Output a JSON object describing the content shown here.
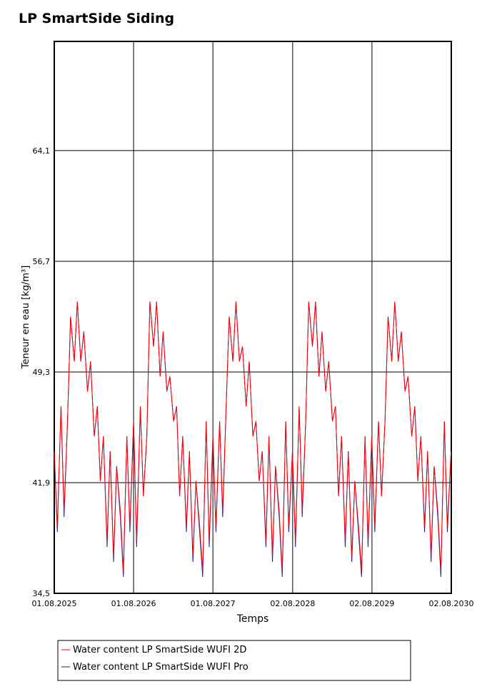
{
  "chart_data": {
    "type": "line",
    "title": "LP SmartSide Siding",
    "x_label": "Temps",
    "y_label": "Teneur en eau [kg/m³]",
    "x": [
      "01.08.2025",
      "15.08.2025",
      "01.09.2025",
      "15.09.2025",
      "01.10.2025",
      "15.10.2025",
      "01.11.2025",
      "15.11.2025",
      "01.12.2025",
      "15.12.2025",
      "01.01.2026",
      "15.01.2026",
      "01.02.2026",
      "15.02.2026",
      "01.03.2026",
      "15.03.2026",
      "01.04.2026",
      "15.04.2026",
      "01.05.2026",
      "15.05.2026",
      "01.06.2026",
      "15.06.2026",
      "01.07.2026",
      "15.07.2026",
      "01.08.2026",
      "15.08.2026",
      "01.09.2026",
      "15.09.2026",
      "01.10.2026",
      "15.10.2026",
      "01.11.2026",
      "15.11.2026",
      "01.12.2026",
      "15.12.2026",
      "01.01.2027",
      "15.01.2027",
      "01.02.2027",
      "15.02.2027",
      "01.03.2027",
      "15.03.2027",
      "01.04.2027",
      "15.04.2027",
      "01.05.2027",
      "15.05.2027",
      "01.06.2027",
      "15.06.2027",
      "01.07.2027",
      "15.07.2027",
      "01.08.2027",
      "15.08.2027",
      "01.09.2027",
      "15.09.2027",
      "01.10.2027",
      "15.10.2027",
      "01.11.2027",
      "15.11.2027",
      "01.12.2027",
      "15.12.2027",
      "01.01.2028",
      "15.01.2028",
      "01.02.2028",
      "15.02.2028",
      "01.03.2028",
      "15.03.2028",
      "01.04.2028",
      "15.04.2028",
      "01.05.2028",
      "15.05.2028",
      "01.06.2028",
      "15.06.2028",
      "01.07.2028",
      "15.07.2028",
      "01.08.2028",
      "15.08.2028",
      "01.09.2028",
      "15.09.2028",
      "01.10.2028",
      "15.10.2028",
      "01.11.2028",
      "15.11.2028",
      "01.12.2028",
      "15.12.2028",
      "01.01.2029",
      "15.01.2029",
      "01.02.2029",
      "15.02.2029",
      "01.03.2029",
      "15.03.2029",
      "01.04.2029",
      "15.04.2029",
      "01.05.2029",
      "15.05.2029",
      "01.06.2029",
      "15.06.2029",
      "01.07.2029",
      "15.07.2029",
      "01.08.2029",
      "15.08.2029",
      "01.09.2029",
      "15.09.2029",
      "01.10.2029",
      "15.10.2029",
      "01.11.2029",
      "15.11.2029",
      "01.12.2029",
      "15.12.2029",
      "01.01.2030",
      "15.01.2030",
      "01.02.2030",
      "15.02.2030",
      "01.03.2030",
      "15.03.2030",
      "01.04.2030",
      "15.04.2030",
      "01.05.2030",
      "15.05.2030",
      "01.06.2030",
      "15.06.2030",
      "01.07.2030",
      "15.07.2030",
      "01.08.2030"
    ],
    "series": [
      {
        "name": "Water content LP SmartSide WUFI Pro",
        "color": "#1a1aaa",
        "values": [
          44,
          38.6,
          47,
          39.6,
          46,
          53,
          50,
          54,
          50,
          52,
          48,
          50,
          45,
          47,
          42,
          45,
          37.6,
          44,
          36.6,
          43,
          39.6,
          35.6,
          45,
          38.6,
          46,
          37.6,
          47,
          41,
          45,
          54,
          51,
          54,
          49,
          52,
          48,
          49,
          46,
          47,
          41,
          45,
          38.6,
          44,
          36.6,
          42,
          38.6,
          35.6,
          46,
          37.6,
          45,
          38.6,
          46,
          39.6,
          47,
          53,
          50,
          54,
          50,
          51,
          47,
          50,
          45,
          46,
          42,
          44,
          37.6,
          45,
          36.6,
          43,
          39.6,
          35.6,
          46,
          38.6,
          44,
          37.6,
          47,
          39.6,
          46,
          54,
          51,
          54,
          49,
          52,
          48,
          50,
          46,
          47,
          41,
          45,
          37.6,
          44,
          36.6,
          42,
          38.6,
          35.6,
          45,
          37.6,
          45,
          38.6,
          46,
          41,
          46,
          53,
          50,
          54,
          50,
          52,
          48,
          49,
          45,
          47,
          42,
          45,
          38.6,
          44,
          36.6,
          43,
          39.6,
          35.6,
          46,
          38.6,
          44
        ]
      },
      {
        "name": "Water content LP SmartSide WUFI 2D",
        "color": "#ff0000",
        "values": [
          44,
          39,
          47,
          40,
          46,
          53,
          50,
          54,
          50,
          52,
          48,
          50,
          45,
          47,
          42,
          45,
          38,
          44,
          37,
          43,
          40,
          36,
          45,
          39,
          46,
          38,
          47,
          41,
          45,
          54,
          51,
          54,
          49,
          52,
          48,
          49,
          46,
          47,
          41,
          45,
          39,
          44,
          37,
          42,
          39,
          36,
          46,
          38,
          45,
          39,
          46,
          40,
          47,
          53,
          50,
          54,
          50,
          51,
          47,
          50,
          45,
          46,
          42,
          44,
          38,
          45,
          37,
          43,
          40,
          36,
          46,
          39,
          44,
          38,
          47,
          40,
          46,
          54,
          51,
          54,
          49,
          52,
          48,
          50,
          46,
          47,
          41,
          45,
          38,
          44,
          37,
          42,
          39,
          36,
          45,
          38,
          45,
          39,
          46,
          41,
          46,
          53,
          50,
          54,
          50,
          52,
          48,
          49,
          45,
          47,
          42,
          45,
          39,
          44,
          37,
          43,
          40,
          36,
          46,
          39,
          44
        ]
      }
    ],
    "xlim": [
      "01.08.2025",
      "02.08.2030"
    ],
    "xticks": [
      "01.08.2025",
      "01.08.2026",
      "01.08.2027",
      "02.08.2028",
      "02.08.2029",
      "02.08.2030"
    ],
    "ylim": [
      34.5,
      71.4
    ],
    "yticks": [
      {
        "value": 34.5,
        "label": "34,5"
      },
      {
        "value": 41.9,
        "label": "41,9"
      },
      {
        "value": 49.3,
        "label": "49,3"
      },
      {
        "value": 56.7,
        "label": "56,7"
      },
      {
        "value": 64.1,
        "label": "64,1"
      }
    ],
    "grid": true
  }
}
